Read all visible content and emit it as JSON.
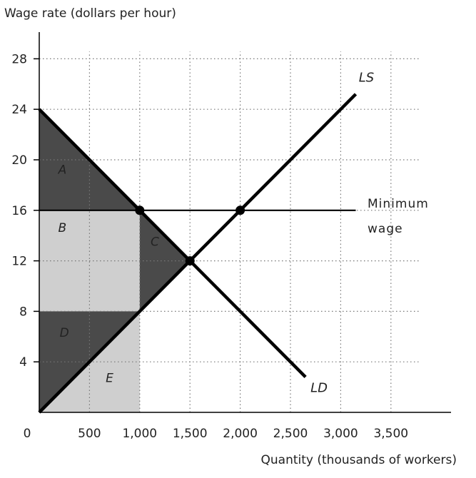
{
  "chart_data": {
    "type": "line",
    "ylabel": "Wage rate (dollars per hour)",
    "xlabel": "Quantity (thousands of workers)",
    "origin_label": "0",
    "xlim": [
      0,
      3500
    ],
    "ylim": [
      0,
      28
    ],
    "x_ticks": [
      {
        "value": 500,
        "label": "500"
      },
      {
        "value": 1000,
        "label": "1,000"
      },
      {
        "value": 1500,
        "label": "1,500"
      },
      {
        "value": 2000,
        "label": "2,000"
      },
      {
        "value": 2500,
        "label": "2,500"
      },
      {
        "value": 3000,
        "label": "3,000"
      },
      {
        "value": 3500,
        "label": "3,500"
      }
    ],
    "y_ticks": [
      {
        "value": 4,
        "label": "4"
      },
      {
        "value": 8,
        "label": "8"
      },
      {
        "value": 12,
        "label": "12"
      },
      {
        "value": 16,
        "label": "16"
      },
      {
        "value": 20,
        "label": "20"
      },
      {
        "value": 24,
        "label": "24"
      },
      {
        "value": 28,
        "label": "28"
      }
    ],
    "grid": true,
    "series": [
      {
        "name": "LS",
        "points": [
          [
            0,
            0
          ],
          [
            3150,
            25.2
          ]
        ],
        "label_at": [
          3180,
          26.2
        ]
      },
      {
        "name": "LD",
        "points": [
          [
            0,
            24
          ],
          [
            2650,
            2.8
          ]
        ],
        "label_at": [
          2700,
          1.6
        ]
      }
    ],
    "minimum_wage": {
      "value": 16,
      "x_range": [
        0,
        3150
      ],
      "label_line1": "Minimum",
      "label_line2": "wage"
    },
    "points": [
      {
        "x": 1000,
        "y": 16
      },
      {
        "x": 2000,
        "y": 16
      },
      {
        "x": 1500,
        "y": 12
      }
    ],
    "regions": [
      {
        "label": "A",
        "shade": "dark",
        "polygon": [
          [
            0,
            24
          ],
          [
            1000,
            16
          ],
          [
            0,
            16
          ]
        ],
        "label_at": [
          230,
          18.9
        ]
      },
      {
        "label": "B",
        "shade": "light",
        "polygon": [
          [
            0,
            16
          ],
          [
            1000,
            16
          ],
          [
            1000,
            8
          ],
          [
            0,
            8
          ]
        ],
        "label_at": [
          230,
          14.3
        ]
      },
      {
        "label": "C",
        "shade": "dark",
        "polygon": [
          [
            1000,
            16
          ],
          [
            1500,
            12
          ],
          [
            1000,
            8
          ]
        ],
        "label_at": [
          1150,
          13.2
        ]
      },
      {
        "label": "D",
        "shade": "dark",
        "polygon": [
          [
            0,
            8
          ],
          [
            1000,
            8
          ],
          [
            0,
            0
          ]
        ],
        "label_at": [
          250,
          6.0
        ]
      },
      {
        "label": "E",
        "shade": "light",
        "polygon": [
          [
            0,
            0
          ],
          [
            1000,
            8
          ],
          [
            1000,
            0
          ]
        ],
        "label_at": [
          700,
          2.4
        ]
      }
    ],
    "colors": {
      "dark_fill": "#4a4a4a",
      "light_fill": "#cfcfcf",
      "line": "#000000",
      "grid": "#777777"
    }
  }
}
